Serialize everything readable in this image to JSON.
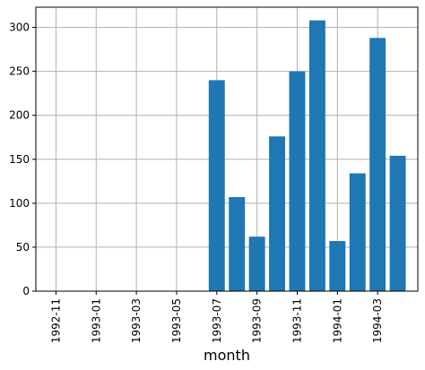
{
  "chart_data": {
    "type": "bar",
    "x_label": "month",
    "x": [
      "1993-07",
      "1993-08",
      "1993-09",
      "1993-10",
      "1993-11",
      "1993-12",
      "1994-01",
      "1994-02",
      "1994-03",
      "1994-04"
    ],
    "values": [
      240,
      107,
      62,
      176,
      250,
      308,
      57,
      134,
      288,
      154
    ],
    "color": "#1f77b4",
    "xlim": [
      "1992-10",
      "1994-05"
    ],
    "xticks": [
      "1992-11",
      "1993-01",
      "1993-03",
      "1993-05",
      "1993-07",
      "1993-09",
      "1993-11",
      "1994-01",
      "1994-03"
    ],
    "ylim": [
      0,
      323
    ],
    "yticks": [
      0,
      50,
      100,
      150,
      200,
      250,
      300
    ],
    "grid": true
  }
}
